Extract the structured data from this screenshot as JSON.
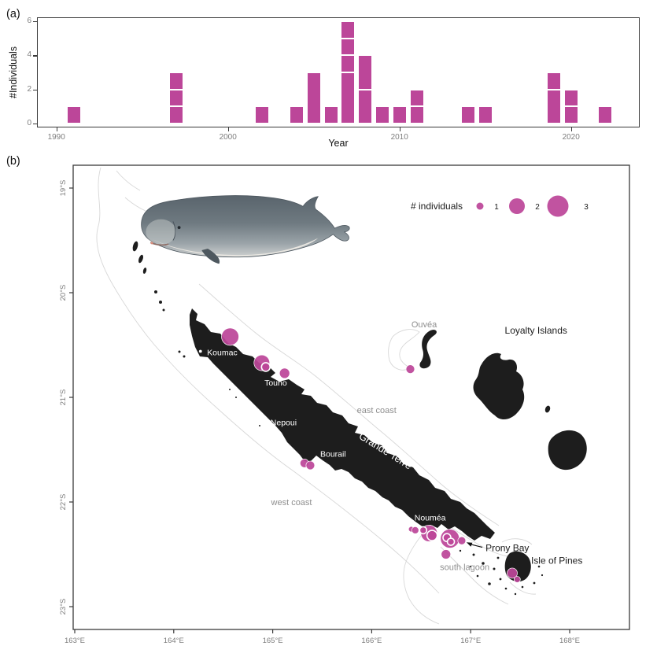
{
  "figure": {
    "type": "two-panel scientific figure",
    "accent_color": "#bc4699",
    "land_color": "#1d1d1d",
    "reef_color": "#d3d3d3",
    "tick_color": "#7d7d7d"
  },
  "panel_a": {
    "label": "(a)",
    "chart_data": {
      "type": "bar",
      "title": "",
      "xlabel": "Year",
      "ylabel": "#Individuals",
      "x_ticks": [
        1990,
        2000,
        2010,
        2020
      ],
      "y_ticks": [
        0,
        2,
        4,
        6
      ],
      "xlim": [
        1988.9,
        2024
      ],
      "ylim": [
        0,
        6.2
      ],
      "bar_color": "#bc4699",
      "grid": false,
      "bars": [
        {
          "year": 1991,
          "segments": [
            1
          ]
        },
        {
          "year": 1997,
          "segments": [
            1,
            1,
            1
          ]
        },
        {
          "year": 2002,
          "segments": [
            1
          ]
        },
        {
          "year": 2004,
          "segments": [
            1
          ]
        },
        {
          "year": 2005,
          "segments": [
            3
          ]
        },
        {
          "year": 2006,
          "segments": [
            1
          ]
        },
        {
          "year": 2007,
          "segments": [
            3,
            1,
            1,
            1
          ]
        },
        {
          "year": 2008,
          "segments": [
            2,
            2
          ]
        },
        {
          "year": 2009,
          "segments": [
            1
          ]
        },
        {
          "year": 2010,
          "segments": [
            1
          ]
        },
        {
          "year": 2011,
          "segments": [
            1,
            1
          ]
        },
        {
          "year": 2014,
          "segments": [
            1
          ]
        },
        {
          "year": 2015,
          "segments": [
            1
          ]
        },
        {
          "year": 2019,
          "segments": [
            2,
            1
          ]
        },
        {
          "year": 2020,
          "segments": [
            1,
            1
          ]
        },
        {
          "year": 2022,
          "segments": [
            1
          ]
        }
      ]
    }
  },
  "panel_b": {
    "label": "(b)",
    "legend": {
      "title": "# individuals",
      "items": [
        {
          "value": "1",
          "radius": 4.5
        },
        {
          "value": "2",
          "radius": 10
        },
        {
          "value": "3",
          "radius": 13.5
        }
      ]
    },
    "axes": {
      "lon_ticks": [
        {
          "value": 163,
          "label": "163°E"
        },
        {
          "value": 164,
          "label": "164°E"
        },
        {
          "value": 165,
          "label": "165°E"
        },
        {
          "value": 166,
          "label": "166°E"
        },
        {
          "value": 167,
          "label": "167°E"
        },
        {
          "value": 168,
          "label": "168°E"
        }
      ],
      "lat_ticks": [
        {
          "value": -19,
          "label": "19°S"
        },
        {
          "value": -20,
          "label": "20°S"
        },
        {
          "value": -21,
          "label": "21°S"
        },
        {
          "value": -22,
          "label": "22°S"
        },
        {
          "value": -23,
          "label": "23°S"
        }
      ]
    },
    "chart_data": {
      "type": "bubble_map",
      "bubble_color": "#bc4699",
      "size_scale": {
        "1": 4.5,
        "2": 10,
        "3": 13.5
      },
      "sightings": [
        {
          "lon": 164.57,
          "lat": -20.42,
          "r": 11,
          "n": 2,
          "ring": false,
          "area": "Koumac"
        },
        {
          "lon": 164.89,
          "lat": -20.67,
          "r": 10,
          "n": 2,
          "ring": false,
          "area": "Touho"
        },
        {
          "lon": 164.93,
          "lat": -20.71,
          "r": 5.5,
          "n": 1,
          "ring": true,
          "area": "Touho"
        },
        {
          "lon": 165.12,
          "lat": -20.77,
          "r": 6.5,
          "n": 1,
          "ring": false,
          "area": "Touho"
        },
        {
          "lon": 166.39,
          "lat": -20.73,
          "r": 5.5,
          "n": 1,
          "ring": false,
          "area": "Ouvéa"
        },
        {
          "lon": 165.32,
          "lat": -21.63,
          "r": 5.5,
          "n": 1,
          "ring": false,
          "area": "Bourail"
        },
        {
          "lon": 165.38,
          "lat": -21.65,
          "r": 5.5,
          "n": 1,
          "ring": false,
          "area": "Bourail"
        },
        {
          "lon": 166.4,
          "lat": -22.26,
          "r": 3.5,
          "n": 1,
          "ring": false,
          "area": "Nouméa"
        },
        {
          "lon": 166.44,
          "lat": -22.27,
          "r": 4.5,
          "n": 1,
          "ring": false,
          "area": "Nouméa"
        },
        {
          "lon": 166.58,
          "lat": -22.3,
          "r": 10.5,
          "n": 2,
          "ring": false,
          "area": "Nouméa"
        },
        {
          "lon": 166.52,
          "lat": -22.27,
          "r": 4.5,
          "n": 1,
          "ring": true,
          "area": "Nouméa"
        },
        {
          "lon": 166.61,
          "lat": -22.32,
          "r": 6.5,
          "n": 1,
          "ring": true,
          "area": "Nouméa"
        },
        {
          "lon": 166.79,
          "lat": -22.35,
          "r": 12,
          "n": 3,
          "ring": false,
          "area": "Prony Bay"
        },
        {
          "lon": 166.76,
          "lat": -22.34,
          "r": 5,
          "n": 1,
          "ring": true,
          "area": "Prony Bay"
        },
        {
          "lon": 166.8,
          "lat": -22.38,
          "r": 4.5,
          "n": 1,
          "ring": true,
          "area": "Prony Bay"
        },
        {
          "lon": 166.91,
          "lat": -22.37,
          "r": 5,
          "n": 1,
          "ring": false,
          "area": "Prony Bay"
        },
        {
          "lon": 166.75,
          "lat": -22.5,
          "r": 6,
          "n": 1,
          "ring": false,
          "area": "south lagoon"
        },
        {
          "lon": 167.42,
          "lat": -22.68,
          "r": 6.5,
          "n": 1,
          "ring": false,
          "area": "Isle of Pines"
        },
        {
          "lon": 167.47,
          "lat": -22.74,
          "r": 4,
          "n": 1,
          "ring": false,
          "area": "Isle of Pines"
        }
      ]
    },
    "place_labels": [
      {
        "text": "Ouvéa",
        "lon": 166.53,
        "lat": -20.3,
        "color": "#8f8f8f",
        "size": 11,
        "rotate": 0
      },
      {
        "text": "Loyalty Islands",
        "lon": 167.66,
        "lat": -20.36,
        "color": "#1a1a1a",
        "size": 12,
        "rotate": 0
      },
      {
        "text": "Koumac",
        "lon": 164.49,
        "lat": -20.57,
        "color": "#ffffff",
        "size": 10.5,
        "rotate": 0
      },
      {
        "text": "Touho",
        "lon": 165.03,
        "lat": -20.86,
        "color": "#ffffff",
        "size": 10.5,
        "rotate": 0
      },
      {
        "text": "east coast",
        "lon": 166.05,
        "lat": -21.12,
        "color": "#8f8f8f",
        "size": 11,
        "rotate": 0
      },
      {
        "text": "Nepoui",
        "lon": 165.11,
        "lat": -21.24,
        "color": "#ffffff",
        "size": 10.5,
        "rotate": 0
      },
      {
        "text": "Grande Terre",
        "lon": 166.14,
        "lat": -21.51,
        "color": "#ffffff",
        "size": 13,
        "rotate": 32
      },
      {
        "text": "Bourail",
        "lon": 165.61,
        "lat": -21.54,
        "color": "#ffffff",
        "size": 10.5,
        "rotate": 0
      },
      {
        "text": "west coast",
        "lon": 165.19,
        "lat": -22.0,
        "color": "#8f8f8f",
        "size": 11,
        "rotate": 0
      },
      {
        "text": "Nouméa",
        "lon": 166.59,
        "lat": -22.15,
        "color": "#ffffff",
        "size": 10.5,
        "rotate": 0
      },
      {
        "text": "south lagoon",
        "lon": 166.94,
        "lat": -22.62,
        "color": "#8f8f8f",
        "size": 11,
        "rotate": 0
      },
      {
        "text": "Isle of Pines",
        "lon": 167.87,
        "lat": -22.56,
        "color": "#1a1a1a",
        "size": 12,
        "rotate": 0
      }
    ],
    "annotation": {
      "text": "Prony Bay",
      "lon": 167.15,
      "lat": -22.44,
      "target": {
        "lon": 166.91,
        "lat": -22.37
      },
      "color": "#1a1a1a",
      "size": 12
    },
    "town_dots": [
      {
        "name": "Koumac",
        "lon": 164.27,
        "lat": -20.56
      },
      {
        "name": "Touho",
        "lon": 165.69,
        "lat": -20.8
      }
    ]
  }
}
